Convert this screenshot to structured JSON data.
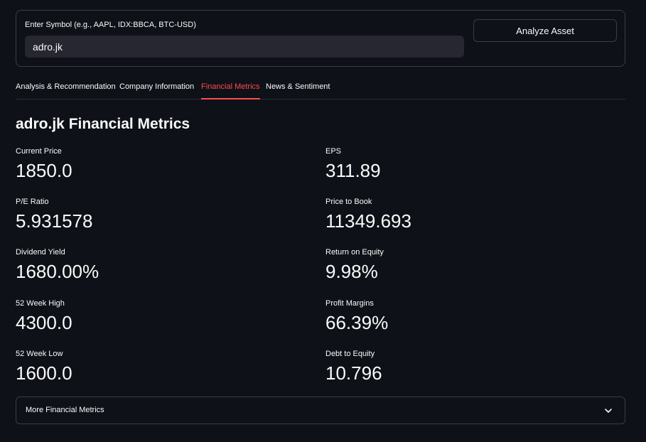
{
  "form": {
    "symbol_label": "Enter Symbol (e.g., AAPL, IDX:BBCA, BTC-USD)",
    "symbol_value": "adro.jk",
    "analyze_label": "Analyze Asset"
  },
  "tabs": [
    {
      "label": "Analysis & Recommendation"
    },
    {
      "label": "Company Information"
    },
    {
      "label": "Financial Metrics"
    },
    {
      "label": "News & Sentiment"
    }
  ],
  "active_tab": "Financial Metrics",
  "accent_color": "#ff4b4b",
  "page_title": "adro.jk Financial Metrics",
  "metrics_left": [
    {
      "label": "Current Price",
      "value": "1850.0"
    },
    {
      "label": "P/E Ratio",
      "value": "5.931578"
    },
    {
      "label": "Dividend Yield",
      "value": "1680.00%"
    },
    {
      "label": "52 Week High",
      "value": "4300.0"
    },
    {
      "label": "52 Week Low",
      "value": "1600.0"
    }
  ],
  "metrics_right": [
    {
      "label": "EPS",
      "value": "311.89"
    },
    {
      "label": "Price to Book",
      "value": "11349.693"
    },
    {
      "label": "Return on Equity",
      "value": "9.98%"
    },
    {
      "label": "Profit Margins",
      "value": "66.39%"
    },
    {
      "label": "Debt to Equity",
      "value": "10.796"
    }
  ],
  "expander": {
    "label": "More Financial Metrics",
    "icon": "chevron-down-icon"
  }
}
